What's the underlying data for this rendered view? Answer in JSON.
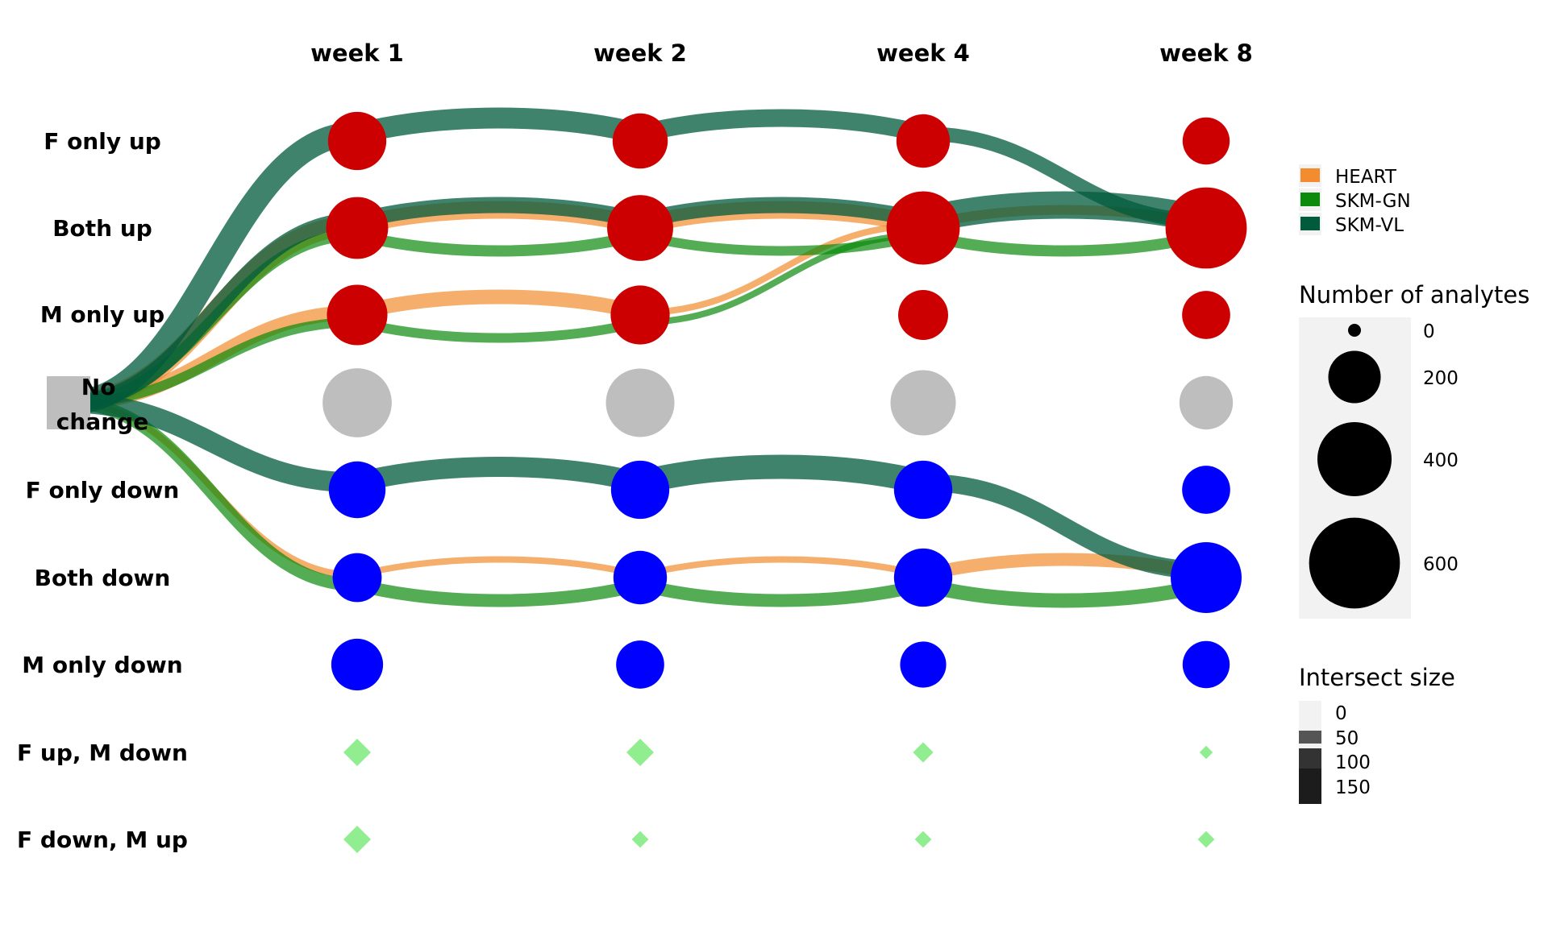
{
  "columns": [
    "week 1",
    "week 2",
    "week 4",
    "week 8"
  ],
  "rows": [
    "F only up",
    "Both up",
    "M only up",
    "No change",
    "F only down",
    "Both down",
    "M only down",
    "F up, M down",
    "F down, M up"
  ],
  "colors": {
    "up": "#cc0000",
    "down": "#0000ff",
    "none": "#bebebe",
    "mixed": "#90ee90",
    "start_box": "#bebebe"
  },
  "tissues": [
    {
      "name": "HEART",
      "color": "#f28c2e"
    },
    {
      "name": "SKM-GN",
      "color": "#0c8a0c"
    },
    {
      "name": "SKM-VL",
      "color": "#005a3c"
    }
  ],
  "legend_size": {
    "title": "Number of analytes",
    "entries": [
      {
        "label": "0",
        "value": 0
      },
      {
        "label": "200",
        "value": 200
      },
      {
        "label": "400",
        "value": 400
      },
      {
        "label": "600",
        "value": 600
      }
    ]
  },
  "legend_intersect": {
    "title": "Intersect size",
    "entries": [
      {
        "label": "0",
        "value": 0
      },
      {
        "label": "50",
        "value": 50
      },
      {
        "label": "100",
        "value": 100
      },
      {
        "label": "150",
        "value": 150
      }
    ]
  },
  "nodes": [
    {
      "col": 0,
      "row": 0,
      "n": 150
    },
    {
      "col": 1,
      "row": 0,
      "n": 130
    },
    {
      "col": 2,
      "row": 0,
      "n": 120
    },
    {
      "col": 3,
      "row": 0,
      "n": 85
    },
    {
      "col": 0,
      "row": 1,
      "n": 175
    },
    {
      "col": 1,
      "row": 1,
      "n": 205
    },
    {
      "col": 2,
      "row": 1,
      "n": 265
    },
    {
      "col": 3,
      "row": 1,
      "n": 340
    },
    {
      "col": 0,
      "row": 2,
      "n": 165
    },
    {
      "col": 1,
      "row": 2,
      "n": 155
    },
    {
      "col": 2,
      "row": 2,
      "n": 100
    },
    {
      "col": 3,
      "row": 2,
      "n": 90
    },
    {
      "col": 0,
      "row": 3,
      "n": 230
    },
    {
      "col": 1,
      "row": 3,
      "n": 225
    },
    {
      "col": 2,
      "row": 3,
      "n": 200
    },
    {
      "col": 3,
      "row": 3,
      "n": 120
    },
    {
      "col": 0,
      "row": 4,
      "n": 140
    },
    {
      "col": 1,
      "row": 4,
      "n": 150
    },
    {
      "col": 2,
      "row": 4,
      "n": 150
    },
    {
      "col": 3,
      "row": 4,
      "n": 90
    },
    {
      "col": 0,
      "row": 5,
      "n": 95
    },
    {
      "col": 1,
      "row": 5,
      "n": 120
    },
    {
      "col": 2,
      "row": 5,
      "n": 150
    },
    {
      "col": 3,
      "row": 5,
      "n": 245
    },
    {
      "col": 0,
      "row": 6,
      "n": 110
    },
    {
      "col": 1,
      "row": 6,
      "n": 90
    },
    {
      "col": 2,
      "row": 6,
      "n": 80
    },
    {
      "col": 3,
      "row": 6,
      "n": 85
    },
    {
      "col": 0,
      "row": 7,
      "n": 5
    },
    {
      "col": 1,
      "row": 7,
      "n": 5
    },
    {
      "col": 2,
      "row": 7,
      "n": 3
    },
    {
      "col": 3,
      "row": 7,
      "n": 1
    },
    {
      "col": 0,
      "row": 8,
      "n": 5
    },
    {
      "col": 1,
      "row": 8,
      "n": 2
    },
    {
      "col": 2,
      "row": 8,
      "n": 2
    },
    {
      "col": 3,
      "row": 8,
      "n": 2
    }
  ],
  "flows": [
    {
      "tissue": "SKM-VL",
      "from": [
        -1,
        3
      ],
      "to": [
        0,
        0
      ],
      "size": 150
    },
    {
      "tissue": "SKM-VL",
      "from": [
        0,
        0
      ],
      "to": [
        1,
        0
      ],
      "size": 130
    },
    {
      "tissue": "SKM-VL",
      "from": [
        1,
        0
      ],
      "to": [
        2,
        0
      ],
      "size": 110
    },
    {
      "tissue": "SKM-VL",
      "from": [
        2,
        0
      ],
      "to": [
        3,
        1
      ],
      "size": 90
    },
    {
      "tissue": "SKM-VL",
      "from": [
        -1,
        3
      ],
      "to": [
        0,
        1
      ],
      "size": 100
    },
    {
      "tissue": "SKM-VL",
      "from": [
        0,
        1
      ],
      "to": [
        1,
        1
      ],
      "size": 100
    },
    {
      "tissue": "SKM-VL",
      "from": [
        1,
        1
      ],
      "to": [
        2,
        1
      ],
      "size": 100
    },
    {
      "tissue": "SKM-VL",
      "from": [
        2,
        1
      ],
      "to": [
        3,
        1
      ],
      "size": 170
    },
    {
      "tissue": "SKM-VL",
      "from": [
        -1,
        3
      ],
      "to": [
        0,
        4
      ],
      "size": 125
    },
    {
      "tissue": "SKM-VL",
      "from": [
        0,
        4
      ],
      "to": [
        1,
        4
      ],
      "size": 125
    },
    {
      "tissue": "SKM-VL",
      "from": [
        1,
        4
      ],
      "to": [
        2,
        4
      ],
      "size": 150
    },
    {
      "tissue": "SKM-VL",
      "from": [
        2,
        4
      ],
      "to": [
        3,
        5
      ],
      "size": 110
    },
    {
      "tissue": "HEART",
      "from": [
        -1,
        3
      ],
      "to": [
        0,
        1
      ],
      "size": 125
    },
    {
      "tissue": "HEART",
      "from": [
        0,
        1
      ],
      "to": [
        1,
        1
      ],
      "size": 110
    },
    {
      "tissue": "HEART",
      "from": [
        1,
        1
      ],
      "to": [
        2,
        1
      ],
      "size": 110
    },
    {
      "tissue": "HEART",
      "from": [
        2,
        1
      ],
      "to": [
        3,
        1
      ],
      "size": 60
    },
    {
      "tissue": "HEART",
      "from": [
        -1,
        3
      ],
      "to": [
        0,
        2
      ],
      "size": 90
    },
    {
      "tissue": "HEART",
      "from": [
        0,
        2
      ],
      "to": [
        1,
        2
      ],
      "size": 90
    },
    {
      "tissue": "HEART",
      "from": [
        1,
        2
      ],
      "to": [
        2,
        1
      ],
      "size": 40
    },
    {
      "tissue": "HEART",
      "from": [
        -1,
        3
      ],
      "to": [
        0,
        5
      ],
      "size": 40
    },
    {
      "tissue": "HEART",
      "from": [
        0,
        5
      ],
      "to": [
        1,
        5
      ],
      "size": 40
    },
    {
      "tissue": "HEART",
      "from": [
        1,
        5
      ],
      "to": [
        2,
        5
      ],
      "size": 40
    },
    {
      "tissue": "HEART",
      "from": [
        2,
        5
      ],
      "to": [
        3,
        5
      ],
      "size": 80
    },
    {
      "tissue": "SKM-GN",
      "from": [
        -1,
        3
      ],
      "to": [
        0,
        1
      ],
      "size": 70
    },
    {
      "tissue": "SKM-GN",
      "from": [
        0,
        1
      ],
      "to": [
        1,
        1
      ],
      "size": 70
    },
    {
      "tissue": "SKM-GN",
      "from": [
        1,
        1
      ],
      "to": [
        2,
        1
      ],
      "size": 60
    },
    {
      "tissue": "SKM-GN",
      "from": [
        2,
        1
      ],
      "to": [
        3,
        1
      ],
      "size": 70
    },
    {
      "tissue": "SKM-GN",
      "from": [
        -1,
        3
      ],
      "to": [
        0,
        2
      ],
      "size": 60
    },
    {
      "tissue": "SKM-GN",
      "from": [
        0,
        2
      ],
      "to": [
        1,
        2
      ],
      "size": 60
    },
    {
      "tissue": "SKM-GN",
      "from": [
        1,
        2
      ],
      "to": [
        2,
        1
      ],
      "size": 30
    },
    {
      "tissue": "SKM-GN",
      "from": [
        -1,
        3
      ],
      "to": [
        0,
        5
      ],
      "size": 80
    },
    {
      "tissue": "SKM-GN",
      "from": [
        0,
        5
      ],
      "to": [
        1,
        5
      ],
      "size": 80
    },
    {
      "tissue": "SKM-GN",
      "from": [
        1,
        5
      ],
      "to": [
        2,
        5
      ],
      "size": 80
    },
    {
      "tissue": "SKM-GN",
      "from": [
        2,
        5
      ],
      "to": [
        3,
        5
      ],
      "size": 90
    }
  ]
}
